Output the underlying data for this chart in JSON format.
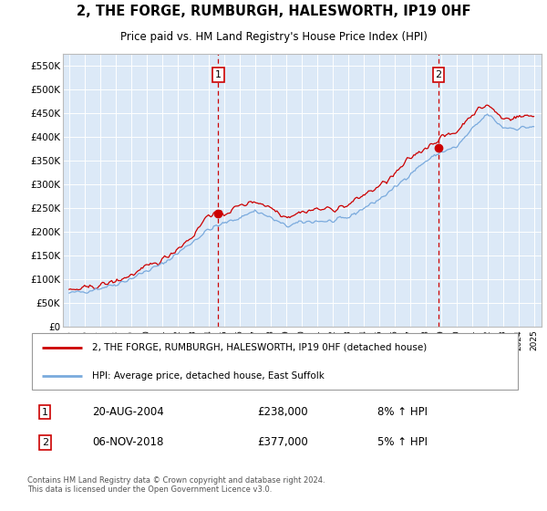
{
  "title": "2, THE FORGE, RUMBURGH, HALESWORTH, IP19 0HF",
  "subtitle": "Price paid vs. HM Land Registry's House Price Index (HPI)",
  "plot_bg_color": "#dce9f7",
  "ylim": [
    0,
    575000
  ],
  "yticks": [
    0,
    50000,
    100000,
    150000,
    200000,
    250000,
    300000,
    350000,
    400000,
    450000,
    500000,
    550000
  ],
  "ytick_labels": [
    "£0",
    "£50K",
    "£100K",
    "£150K",
    "£200K",
    "£250K",
    "£300K",
    "£350K",
    "£400K",
    "£450K",
    "£500K",
    "£550K"
  ],
  "xlim_start": 1995.0,
  "xlim_end": 2025.5,
  "xtick_years": [
    1995,
    1996,
    1997,
    1998,
    1999,
    2000,
    2001,
    2002,
    2003,
    2004,
    2005,
    2006,
    2007,
    2008,
    2009,
    2010,
    2011,
    2012,
    2013,
    2014,
    2015,
    2016,
    2017,
    2018,
    2019,
    2020,
    2021,
    2022,
    2023,
    2024,
    2025
  ],
  "purchase_1_x": 2004.63,
  "purchase_1_y": 238000,
  "purchase_1_label": "1",
  "purchase_1_date": "20-AUG-2004",
  "purchase_1_price": "£238,000",
  "purchase_1_hpi": "8% ↑ HPI",
  "purchase_2_x": 2018.85,
  "purchase_2_y": 377000,
  "purchase_2_label": "2",
  "purchase_2_date": "06-NOV-2018",
  "purchase_2_price": "£377,000",
  "purchase_2_hpi": "5% ↑ HPI",
  "legend_line1": "2, THE FORGE, RUMBURGH, HALESWORTH, IP19 0HF (detached house)",
  "legend_line2": "HPI: Average price, detached house, East Suffolk",
  "footer": "Contains HM Land Registry data © Crown copyright and database right 2024.\nThis data is licensed under the Open Government Licence v3.0.",
  "line_color_price": "#cc0000",
  "line_color_hpi": "#7aaadd",
  "vline_color": "#cc0000",
  "marker_color": "#cc0000"
}
